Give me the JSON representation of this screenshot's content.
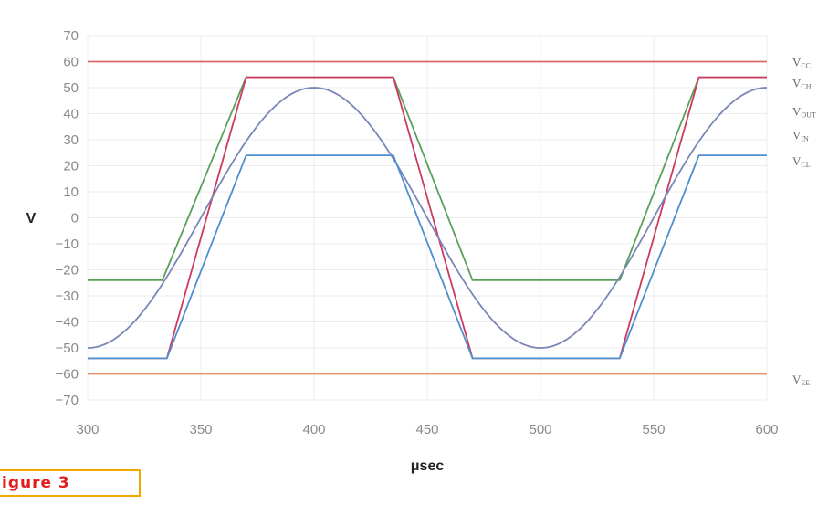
{
  "chart_data": {
    "type": "line",
    "xlabel": "μsec",
    "ylabel": "V",
    "xlim": [
      300,
      600
    ],
    "ylim": [
      -70,
      70
    ],
    "xticks": [
      300,
      350,
      400,
      450,
      500,
      550,
      600
    ],
    "yticks": [
      70,
      60,
      50,
      40,
      30,
      20,
      10,
      0,
      -10,
      -20,
      -30,
      -40,
      -50,
      -60,
      -70
    ],
    "ytick_labels": [
      "70",
      "60",
      "50",
      "40",
      "30",
      "20",
      "10",
      "0",
      "−10",
      "−20",
      "−30",
      "−40",
      "−50",
      "−60",
      "−70"
    ],
    "grid": true,
    "legend": "right",
    "series": [
      {
        "name": "VCC",
        "main": "V",
        "sub": "CC",
        "color": "#e06a6a",
        "x": [
          300,
          600
        ],
        "y": [
          60,
          60
        ]
      },
      {
        "name": "VCH",
        "main": "V",
        "sub": "CH",
        "color": "#5aa05a",
        "x": [
          300,
          333,
          370,
          435,
          470,
          535,
          570,
          600
        ],
        "y": [
          -24,
          -24,
          54,
          54,
          -24,
          -24,
          54,
          54
        ]
      },
      {
        "name": "VOUT",
        "main": "V",
        "sub": "OUT",
        "color": "#cc3a60",
        "x": [
          300,
          335,
          370,
          435,
          470,
          535,
          570,
          600
        ],
        "y": [
          -54,
          -54,
          54,
          54,
          -54,
          -54,
          54,
          54
        ]
      },
      {
        "name": "VIN",
        "main": "V",
        "sub": "IN",
        "color": "#7a86b8",
        "function": "sine",
        "amplitude": 50,
        "period": 200,
        "peak_at": 400
      },
      {
        "name": "VCL",
        "main": "V",
        "sub": "CL",
        "color": "#4f8fd0",
        "x": [
          300,
          335,
          370,
          435,
          470,
          535,
          570,
          600
        ],
        "y": [
          -54,
          -54,
          24,
          24,
          -54,
          -54,
          24,
          24
        ]
      },
      {
        "name": "VEE",
        "main": "V",
        "sub": "EE",
        "color": "#e8906a",
        "x": [
          300,
          600
        ],
        "y": [
          -60,
          -60
        ]
      }
    ],
    "legend_entries": [
      {
        "main": "V",
        "sub": "CC",
        "value": 60
      },
      {
        "main": "V",
        "sub": "CH",
        "value": 52
      },
      {
        "main": "V",
        "sub": "OUT",
        "value": 41
      },
      {
        "main": "V",
        "sub": "IN",
        "value": 32
      },
      {
        "main": "V",
        "sub": "CL",
        "value": 22
      },
      {
        "main": "V",
        "sub": "EE",
        "value": -62
      }
    ]
  },
  "figure_label": "igure 3"
}
